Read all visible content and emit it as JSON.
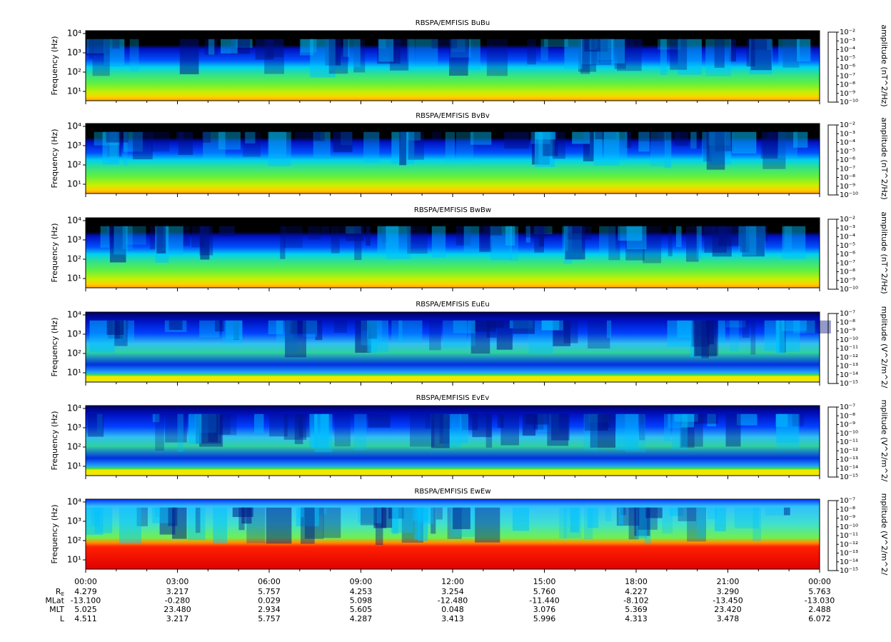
{
  "chart_data": [
    {
      "type": "spectrogram",
      "title": "RBSPA/EMFISIS  BuBu",
      "y_label": "Frequency (Hz)",
      "log_y": true,
      "ylim": [
        3.3,
        14000
      ],
      "yticks": [
        {
          "value": 10,
          "label": "10¹"
        },
        {
          "value": 100,
          "label": "10²"
        },
        {
          "value": 1000,
          "label": "10³"
        },
        {
          "value": 10000,
          "label": "10⁴"
        }
      ],
      "colorbar_label": "amplitude (nT^2/Hz)",
      "clim": [
        1e-10,
        0.01
      ],
      "cticks": [
        {
          "value": 0.01,
          "label": "10⁻²"
        },
        {
          "value": 0.001,
          "label": "10⁻³"
        },
        {
          "value": 0.0001,
          "label": "10⁻⁴"
        },
        {
          "value": 1e-05,
          "label": "10⁻⁵"
        },
        {
          "value": 1e-06,
          "label": "10⁻⁶"
        },
        {
          "value": 1e-07,
          "label": "10⁻⁷"
        },
        {
          "value": 1e-08,
          "label": "10⁻⁸"
        },
        {
          "value": 1e-09,
          "label": "10⁻⁹"
        },
        {
          "value": 1e-10,
          "label": "10⁻¹⁰"
        }
      ]
    },
    {
      "type": "spectrogram",
      "title": "RBSPA/EMFISIS  BvBv",
      "y_label": "Frequency (Hz)",
      "log_y": true,
      "ylim": [
        3.3,
        14000
      ],
      "yticks": [
        {
          "value": 10,
          "label": "10¹"
        },
        {
          "value": 100,
          "label": "10²"
        },
        {
          "value": 1000,
          "label": "10³"
        },
        {
          "value": 10000,
          "label": "10⁴"
        }
      ],
      "colorbar_label": "amplitude (nT^2/Hz)",
      "clim": [
        1e-10,
        0.01
      ],
      "cticks": [
        {
          "value": 0.01,
          "label": "10⁻²"
        },
        {
          "value": 0.001,
          "label": "10⁻³"
        },
        {
          "value": 0.0001,
          "label": "10⁻⁴"
        },
        {
          "value": 1e-05,
          "label": "10⁻⁵"
        },
        {
          "value": 1e-06,
          "label": "10⁻⁶"
        },
        {
          "value": 1e-07,
          "label": "10⁻⁷"
        },
        {
          "value": 1e-08,
          "label": "10⁻⁸"
        },
        {
          "value": 1e-09,
          "label": "10⁻⁹"
        },
        {
          "value": 1e-10,
          "label": "10⁻¹⁰"
        }
      ]
    },
    {
      "type": "spectrogram",
      "title": "RBSPA/EMFISIS  BwBw",
      "y_label": "Frequency (Hz)",
      "log_y": true,
      "ylim": [
        3.3,
        14000
      ],
      "yticks": [
        {
          "value": 10,
          "label": "10¹"
        },
        {
          "value": 100,
          "label": "10²"
        },
        {
          "value": 1000,
          "label": "10³"
        },
        {
          "value": 10000,
          "label": "10⁴"
        }
      ],
      "colorbar_label": "amplitude (nT^2/Hz)",
      "clim": [
        1e-10,
        0.01
      ],
      "cticks": [
        {
          "value": 0.01,
          "label": "10⁻²"
        },
        {
          "value": 0.001,
          "label": "10⁻³"
        },
        {
          "value": 0.0001,
          "label": "10⁻⁴"
        },
        {
          "value": 1e-05,
          "label": "10⁻⁵"
        },
        {
          "value": 1e-06,
          "label": "10⁻⁶"
        },
        {
          "value": 1e-07,
          "label": "10⁻⁷"
        },
        {
          "value": 1e-08,
          "label": "10⁻⁸"
        },
        {
          "value": 1e-09,
          "label": "10⁻⁹"
        },
        {
          "value": 1e-10,
          "label": "10⁻¹⁰"
        }
      ]
    },
    {
      "type": "spectrogram",
      "title": "RBSPA/EMFISIS  EuEu",
      "y_label": "Frequency (Hz)",
      "log_y": true,
      "ylim": [
        3.3,
        14000
      ],
      "yticks": [
        {
          "value": 10,
          "label": "10¹"
        },
        {
          "value": 100,
          "label": "10²"
        },
        {
          "value": 1000,
          "label": "10³"
        },
        {
          "value": 10000,
          "label": "10⁴"
        }
      ],
      "colorbar_label": "mplitude (V^2/m^2/",
      "clim": [
        1e-15,
        1e-07
      ],
      "cticks": [
        {
          "value": 1e-07,
          "label": "10⁻⁷"
        },
        {
          "value": 1e-08,
          "label": "10⁻⁸"
        },
        {
          "value": 1e-09,
          "label": "10⁻⁹"
        },
        {
          "value": 1e-10,
          "label": "10⁻¹⁰"
        },
        {
          "value": 1e-11,
          "label": "10⁻¹¹"
        },
        {
          "value": 1e-12,
          "label": "10⁻¹²"
        },
        {
          "value": 1e-13,
          "label": "10⁻¹³"
        },
        {
          "value": 1e-14,
          "label": "10⁻¹⁴"
        },
        {
          "value": 1e-15,
          "label": "10⁻¹⁵"
        }
      ]
    },
    {
      "type": "spectrogram",
      "title": "RBSPA/EMFISIS  EvEv",
      "y_label": "Frequency (Hz)",
      "log_y": true,
      "ylim": [
        3.3,
        14000
      ],
      "yticks": [
        {
          "value": 10,
          "label": "10¹"
        },
        {
          "value": 100,
          "label": "10²"
        },
        {
          "value": 1000,
          "label": "10³"
        },
        {
          "value": 10000,
          "label": "10⁴"
        }
      ],
      "colorbar_label": "mplitude (V^2/m^2/",
      "clim": [
        1e-15,
        1e-07
      ],
      "cticks": [
        {
          "value": 1e-07,
          "label": "10⁻⁷"
        },
        {
          "value": 1e-08,
          "label": "10⁻⁸"
        },
        {
          "value": 1e-09,
          "label": "10⁻⁹"
        },
        {
          "value": 1e-10,
          "label": "10⁻¹⁰"
        },
        {
          "value": 1e-11,
          "label": "10⁻¹¹"
        },
        {
          "value": 1e-12,
          "label": "10⁻¹²"
        },
        {
          "value": 1e-13,
          "label": "10⁻¹³"
        },
        {
          "value": 1e-14,
          "label": "10⁻¹⁴"
        },
        {
          "value": 1e-15,
          "label": "10⁻¹⁵"
        }
      ]
    },
    {
      "type": "spectrogram",
      "title": "RBSPA/EMFISIS  EwEw",
      "y_label": "Frequency (Hz)",
      "log_y": true,
      "ylim": [
        3.3,
        14000
      ],
      "yticks": [
        {
          "value": 10,
          "label": "10¹"
        },
        {
          "value": 100,
          "label": "10²"
        },
        {
          "value": 1000,
          "label": "10³"
        },
        {
          "value": 10000,
          "label": "10⁴"
        }
      ],
      "colorbar_label": "mplitude (V^2/m^2/",
      "clim": [
        1e-15,
        1e-07
      ],
      "cticks": [
        {
          "value": 1e-07,
          "label": "10⁻⁷"
        },
        {
          "value": 1e-08,
          "label": "10⁻⁸"
        },
        {
          "value": 1e-09,
          "label": "10⁻⁹"
        },
        {
          "value": 1e-10,
          "label": "10⁻¹⁰"
        },
        {
          "value": 1e-11,
          "label": "10⁻¹¹"
        },
        {
          "value": 1e-12,
          "label": "10⁻¹²"
        },
        {
          "value": 1e-13,
          "label": "10⁻¹³"
        },
        {
          "value": 1e-14,
          "label": "10⁻¹⁴"
        },
        {
          "value": 1e-15,
          "label": "10⁻¹⁵"
        }
      ]
    }
  ],
  "colormap": [
    "#ff0000",
    "#ff8000",
    "#ffff00",
    "#80ff00",
    "#00e040",
    "#00ffff",
    "#0080ff",
    "#0000ff",
    "#000080"
  ],
  "xticks": [
    "00:00",
    "03:00",
    "06:00",
    "09:00",
    "12:00",
    "15:00",
    "18:00",
    "21:00",
    "00:00"
  ],
  "ephemeris": [
    {
      "label": "R",
      "sub": "E",
      "values": [
        "4.279",
        "3.217",
        "5.757",
        "4.253",
        "3.254",
        "5.760",
        "4.227",
        "3.290",
        "5.763"
      ]
    },
    {
      "label": "MLat",
      "values": [
        "-13.100",
        "-0.280",
        "0.029",
        "5.098",
        "-12.480",
        "-11.440",
        "-8.102",
        "-13.450",
        "-13.030"
      ]
    },
    {
      "label": "MLT",
      "values": [
        "5.025",
        "23.480",
        "2.934",
        "5.605",
        "0.048",
        "3.076",
        "5.369",
        "23.420",
        "2.488"
      ]
    },
    {
      "label": "L",
      "values": [
        "4.511",
        "3.217",
        "5.757",
        "4.287",
        "3.413",
        "5.996",
        "4.313",
        "3.478",
        "6.072"
      ]
    }
  ]
}
